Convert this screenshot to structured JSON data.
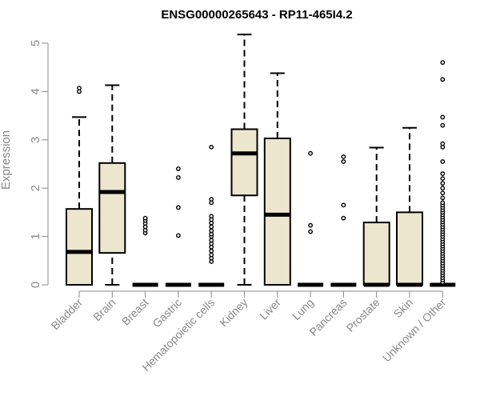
{
  "chart_data": {
    "type": "box",
    "title": "ENSG00000265643 - RP11-465I4.2",
    "xlabel": "",
    "ylabel": "Expression",
    "ylim": [
      0,
      5
    ],
    "yticks": [
      0,
      1,
      2,
      3,
      4,
      5
    ],
    "grid": false,
    "legend": "none",
    "box_fill": "#ede6cf",
    "categories": [
      "Bladder",
      "Brain",
      "Breast",
      "Gastric",
      "Hematopoietic cells",
      "Kidney",
      "Liver",
      "Lung",
      "Pancreas",
      "Prostate",
      "Skin",
      "Unknown / Other"
    ],
    "boxes": [
      {
        "min": 0,
        "q1": 0,
        "median": 0.68,
        "q3": 1.57,
        "max": 3.47,
        "outliers": [
          4.0,
          4.07
        ]
      },
      {
        "min": 0,
        "q1": 0.66,
        "median": 1.92,
        "q3": 2.52,
        "max": 4.13,
        "outliers": []
      },
      {
        "min": 0,
        "q1": 0,
        "median": 0,
        "q3": 0,
        "max": 0,
        "outliers": [
          1.07,
          1.13,
          1.2,
          1.27,
          1.33,
          1.38
        ]
      },
      {
        "min": 0,
        "q1": 0,
        "median": 0,
        "q3": 0,
        "max": 0,
        "outliers": [
          1.02,
          1.6,
          2.22,
          2.4
        ]
      },
      {
        "min": 0,
        "q1": 0,
        "median": 0,
        "q3": 0,
        "max": 0,
        "outliers": [
          0.48,
          0.55,
          0.62,
          0.7,
          0.78,
          0.85,
          0.92,
          1.0,
          1.05,
          1.12,
          1.2,
          1.28,
          1.35,
          1.42,
          1.7,
          1.77,
          2.85
        ]
      },
      {
        "min": 0,
        "q1": 1.85,
        "median": 2.72,
        "q3": 3.22,
        "max": 5.18,
        "outliers": []
      },
      {
        "min": 0,
        "q1": 0,
        "median": 1.45,
        "q3": 3.03,
        "max": 4.38,
        "outliers": []
      },
      {
        "min": 0,
        "q1": 0,
        "median": 0,
        "q3": 0,
        "max": 0,
        "outliers": [
          1.1,
          1.23,
          2.72
        ]
      },
      {
        "min": 0,
        "q1": 0,
        "median": 0,
        "q3": 0,
        "max": 0,
        "outliers": [
          1.38,
          1.65,
          2.55,
          2.65
        ]
      },
      {
        "min": 0,
        "q1": 0,
        "median": 0,
        "q3": 1.29,
        "max": 2.84,
        "outliers": []
      },
      {
        "min": 0,
        "q1": 0,
        "median": 0,
        "q3": 1.5,
        "max": 3.25,
        "outliers": []
      },
      {
        "min": 0,
        "q1": 0,
        "median": 0,
        "q3": 0,
        "max": 0,
        "outliers": [
          0.05,
          0.1,
          0.15,
          0.2,
          0.25,
          0.3,
          0.35,
          0.4,
          0.45,
          0.5,
          0.55,
          0.6,
          0.65,
          0.7,
          0.75,
          0.8,
          0.85,
          0.9,
          0.95,
          1.0,
          1.05,
          1.1,
          1.15,
          1.2,
          1.25,
          1.3,
          1.35,
          1.4,
          1.45,
          1.5,
          1.55,
          1.6,
          1.65,
          1.7,
          1.8,
          1.9,
          2.0,
          2.1,
          2.2,
          2.3,
          2.55,
          2.85,
          2.92,
          3.3,
          3.47,
          4.25,
          4.6
        ]
      }
    ]
  }
}
